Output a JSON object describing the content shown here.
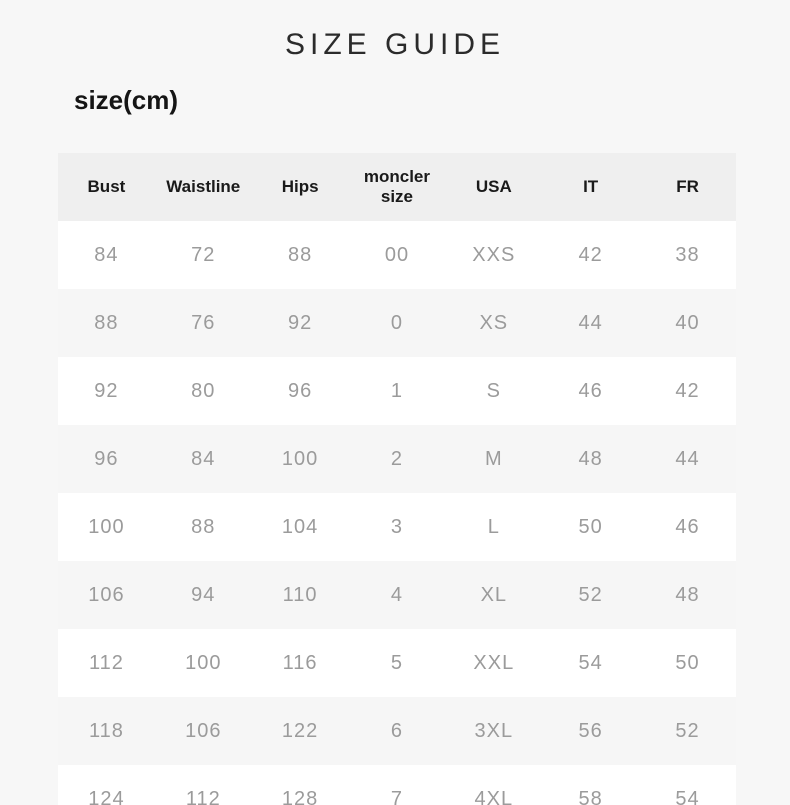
{
  "page": {
    "title": "SIZE GUIDE",
    "unit_label": "size(cm)"
  },
  "table": {
    "columns": [
      "Bust",
      "Waistline",
      "Hips",
      "moncler size",
      "USA",
      "IT",
      "FR"
    ],
    "rows": [
      [
        "84",
        "72",
        "88",
        "00",
        "XXS",
        "42",
        "38"
      ],
      [
        "88",
        "76",
        "92",
        "0",
        "XS",
        "44",
        "40"
      ],
      [
        "92",
        "80",
        "96",
        "1",
        "S",
        "46",
        "42"
      ],
      [
        "96",
        "84",
        "100",
        "2",
        "M",
        "48",
        "44"
      ],
      [
        "100",
        "88",
        "104",
        "3",
        "L",
        "50",
        "46"
      ],
      [
        "106",
        "94",
        "110",
        "4",
        "XL",
        "52",
        "48"
      ],
      [
        "112",
        "100",
        "116",
        "5",
        "XXL",
        "54",
        "50"
      ],
      [
        "118",
        "106",
        "122",
        "6",
        "3XL",
        "56",
        "52"
      ],
      [
        "124",
        "112",
        "128",
        "7",
        "4XL",
        "58",
        "54"
      ]
    ]
  },
  "colors": {
    "page_bg": "#f7f7f7",
    "header_bg": "#efefef",
    "row_bg": "#ffffff",
    "row_alt_bg": "#f6f6f6",
    "title_text": "#2b2b2b",
    "label_text": "#151515",
    "header_text": "#1a1a1a",
    "data_text": "#9b9b9b"
  }
}
